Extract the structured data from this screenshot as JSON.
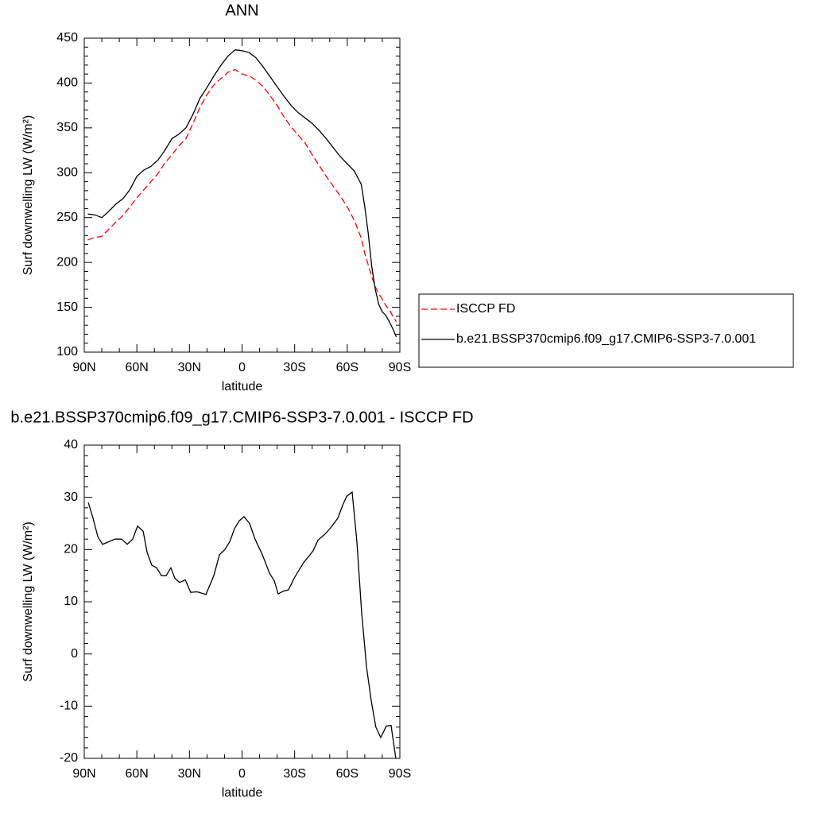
{
  "chart_data": [
    {
      "type": "line",
      "title": "ANN",
      "x_label": "latitude",
      "y_label": "Surf downwelling LW (W/m²)",
      "x": [
        88,
        84,
        80,
        76,
        72,
        68,
        64,
        60,
        56,
        52,
        48,
        44,
        40,
        36,
        32,
        28,
        24,
        20,
        16,
        12,
        8,
        4,
        0,
        -4,
        -8,
        -12,
        -16,
        -20,
        -24,
        -28,
        -32,
        -36,
        -40,
        -44,
        -48,
        -52,
        -56,
        -60,
        -64,
        -68,
        -70,
        -72,
        -74,
        -76,
        -78,
        -80,
        -82,
        -84,
        -86,
        -88
      ],
      "series": [
        {
          "name": "ISCCP FD",
          "color": "#ff0000",
          "line_style": "dashed",
          "values": [
            225,
            228,
            229,
            237,
            245,
            252,
            262,
            272,
            281,
            290,
            299,
            311,
            320,
            330,
            338,
            355,
            373,
            387,
            398,
            405,
            412,
            415,
            410,
            408,
            403,
            396,
            386,
            375,
            362,
            351,
            342,
            333,
            320,
            308,
            296,
            285,
            274,
            262,
            247,
            227,
            210,
            197,
            184,
            173,
            165,
            159,
            152,
            147,
            140,
            134
          ]
        },
        {
          "name": "b.e21.BSSP370cmip6.f09_g17.CMIP6-SSP3-7.0.001",
          "color": "#000000",
          "line_style": "solid",
          "values": [
            254,
            253,
            250,
            257,
            265,
            271,
            281,
            296,
            303,
            307,
            314,
            325,
            338,
            343,
            350,
            365,
            383,
            395,
            408,
            420,
            430,
            437,
            436,
            434,
            428,
            418,
            407,
            396,
            385,
            375,
            367,
            361,
            355,
            347,
            338,
            328,
            318,
            310,
            302,
            287,
            262,
            232,
            195,
            170,
            153,
            145,
            141,
            134,
            126,
            117
          ]
        }
      ],
      "xlim": [
        90,
        -90
      ],
      "xticks": [
        {
          "value": 90,
          "label": "90N"
        },
        {
          "value": 60,
          "label": "60N"
        },
        {
          "value": 30,
          "label": "30N"
        },
        0,
        {
          "value": -30,
          "label": "30S"
        },
        {
          "value": -60,
          "label": "60S"
        },
        {
          "value": -90,
          "label": "90S"
        }
      ],
      "ylim": [
        100,
        450
      ],
      "yticks": [
        100,
        150,
        200,
        250,
        300,
        350,
        400,
        450
      ],
      "legend_position": "right"
    },
    {
      "type": "line",
      "title": "b.e21.BSSP370cmip6.f09_g17.CMIP6-SSP3-7.0.001 - ISCCP FD",
      "x_label": "latitude",
      "y_label": "Surf downwelling LW (W/m²)",
      "x": [
        87.7,
        85,
        82.3,
        79.6,
        76,
        72.5,
        68.7,
        65.5,
        62.4,
        59.6,
        56.4,
        54.2,
        51.5,
        48.7,
        46,
        43.3,
        40.6,
        38.3,
        35.6,
        32.4,
        29.3,
        25.6,
        20.6,
        16.1,
        12.9,
        9.8,
        7,
        4.3,
        1.6,
        -1.1,
        -4.3,
        -7.4,
        -11.6,
        -15.6,
        -18.4,
        -20.6,
        -23.3,
        -26.5,
        -29.7,
        -32.4,
        -35.1,
        -38.3,
        -40.6,
        -43.3,
        -47.4,
        -50.6,
        -54.6,
        -57.4,
        -59.7,
        -62.8,
        -65.5,
        -68.2,
        -71,
        -73.7,
        -76.3,
        -79.1,
        -82.3,
        -85,
        -87.7
      ],
      "series": [
        {
          "color": "#000000",
          "line_style": "solid",
          "values": [
            29,
            26,
            22.5,
            21,
            21.5,
            22,
            22,
            21,
            22,
            24.5,
            23.5,
            19.5,
            17,
            16.5,
            15,
            15,
            16.5,
            14.5,
            13.7,
            14.2,
            11.8,
            11.9,
            11.4,
            15,
            19,
            20,
            21.5,
            24,
            25.5,
            26.3,
            25,
            22,
            19,
            15.5,
            14,
            11.5,
            12,
            12.3,
            14.5,
            16,
            17.5,
            18.8,
            19.8,
            21.8,
            23,
            24.2,
            26,
            28.5,
            30.2,
            31,
            21.5,
            8,
            -2.5,
            -9,
            -14,
            -16,
            -13.8,
            -13.7,
            -20
          ]
        }
      ],
      "xlim": [
        90,
        -90
      ],
      "xticks": [
        {
          "value": 90,
          "label": "90N"
        },
        {
          "value": 60,
          "label": "60N"
        },
        {
          "value": 30,
          "label": "30N"
        },
        0,
        {
          "value": -30,
          "label": "30S"
        },
        {
          "value": -60,
          "label": "60S"
        },
        {
          "value": -90,
          "label": "90S"
        }
      ],
      "ylim": [
        -20,
        40
      ],
      "yticks": [
        -20,
        -10,
        0,
        10,
        20,
        30,
        40
      ]
    }
  ]
}
